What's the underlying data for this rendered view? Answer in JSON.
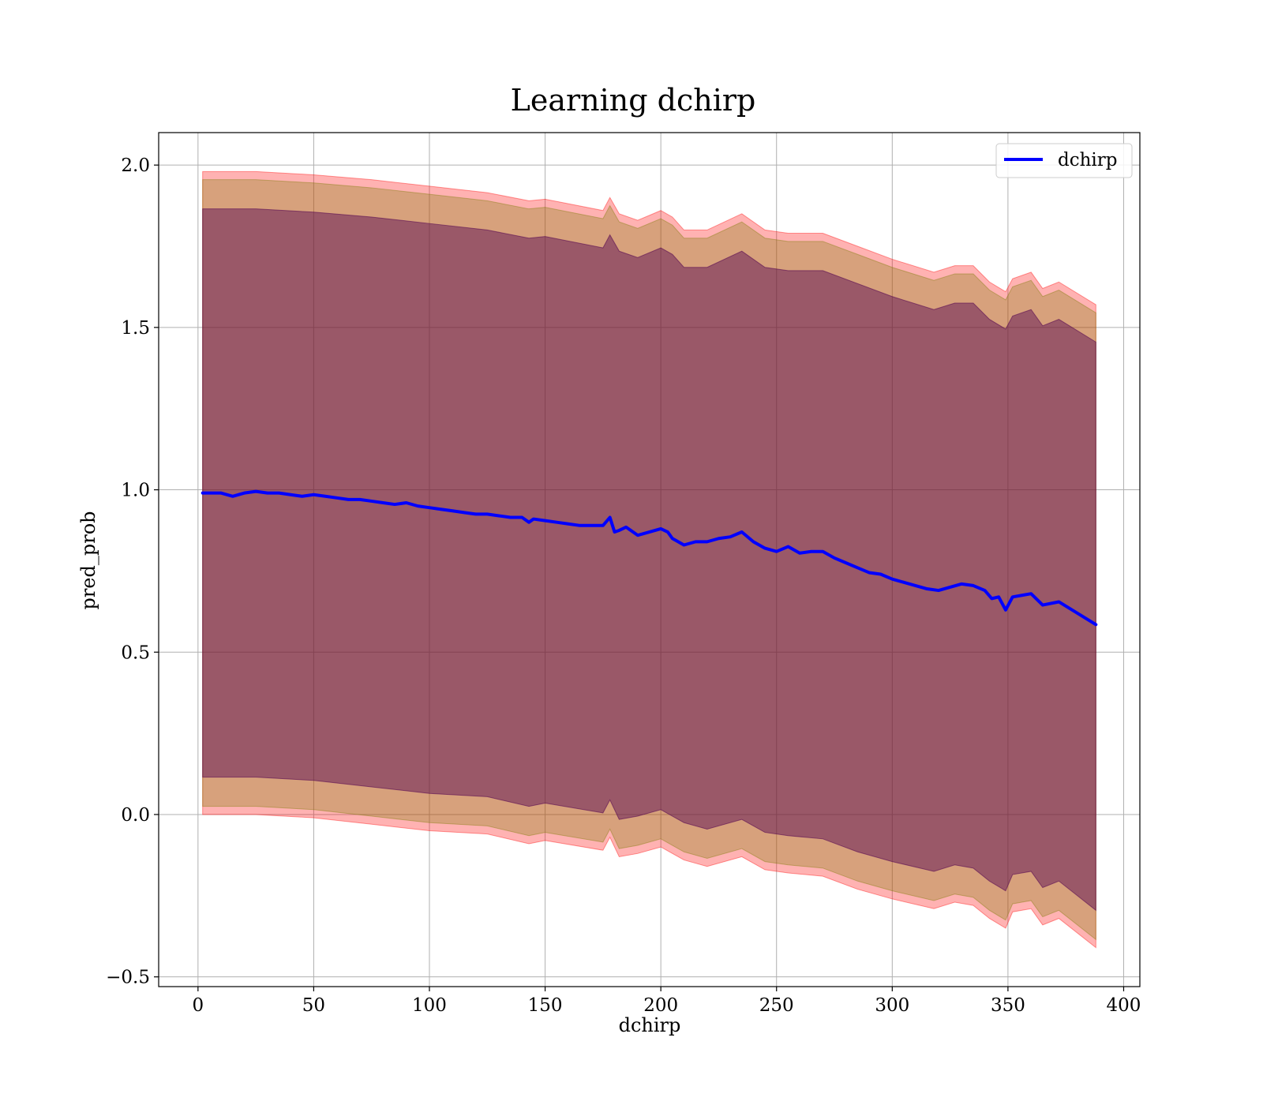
{
  "chart_data": {
    "type": "line",
    "title": "Learning dchirp",
    "xlabel": "dchirp",
    "ylabel": "pred_prob",
    "xlim": [
      -17,
      407
    ],
    "ylim": [
      -0.53,
      2.1
    ],
    "xticks": [
      0,
      50,
      100,
      150,
      200,
      250,
      300,
      350,
      400
    ],
    "xtick_labels": [
      "0",
      "50",
      "100",
      "150",
      "200",
      "250",
      "300",
      "350",
      "400"
    ],
    "yticks": [
      -0.5,
      0.0,
      0.5,
      1.0,
      1.5,
      2.0
    ],
    "ytick_labels": [
      "−0.5",
      "0.0",
      "0.5",
      "1.0",
      "1.5",
      "2.0"
    ],
    "grid": true,
    "legend_position": "top-right",
    "series": [
      {
        "name": "dchirp",
        "color": "#0000ff",
        "x": [
          2,
          10,
          15,
          20,
          25,
          30,
          35,
          40,
          45,
          50,
          55,
          60,
          65,
          70,
          75,
          80,
          85,
          90,
          95,
          100,
          105,
          110,
          115,
          120,
          125,
          130,
          135,
          140,
          143,
          145,
          150,
          155,
          160,
          165,
          170,
          175,
          178,
          180,
          182,
          185,
          190,
          195,
          200,
          203,
          205,
          210,
          215,
          220,
          225,
          230,
          235,
          240,
          245,
          250,
          255,
          260,
          265,
          270,
          275,
          280,
          285,
          290,
          295,
          300,
          305,
          310,
          315,
          320,
          325,
          330,
          335,
          340,
          343,
          346,
          349,
          352,
          356,
          360,
          365,
          372,
          388
        ],
        "values": [
          0.99,
          0.99,
          0.98,
          0.99,
          0.995,
          0.99,
          0.99,
          0.985,
          0.98,
          0.985,
          0.98,
          0.975,
          0.97,
          0.97,
          0.965,
          0.96,
          0.955,
          0.96,
          0.95,
          0.945,
          0.94,
          0.935,
          0.93,
          0.925,
          0.925,
          0.92,
          0.915,
          0.915,
          0.9,
          0.91,
          0.905,
          0.9,
          0.895,
          0.89,
          0.89,
          0.89,
          0.915,
          0.87,
          0.875,
          0.885,
          0.86,
          0.87,
          0.88,
          0.87,
          0.85,
          0.83,
          0.84,
          0.84,
          0.85,
          0.855,
          0.87,
          0.84,
          0.82,
          0.81,
          0.825,
          0.805,
          0.81,
          0.81,
          0.79,
          0.775,
          0.76,
          0.745,
          0.74,
          0.725,
          0.715,
          0.705,
          0.695,
          0.69,
          0.7,
          0.71,
          0.705,
          0.69,
          0.665,
          0.67,
          0.63,
          0.67,
          0.675,
          0.68,
          0.645,
          0.655,
          0.585
        ]
      }
    ],
    "bands": [
      {
        "color": "#ff0000",
        "opacity": 0.3,
        "x": [
          2,
          25,
          50,
          75,
          100,
          125,
          143,
          150,
          175,
          178,
          182,
          190,
          200,
          205,
          210,
          220,
          235,
          245,
          255,
          270,
          285,
          300,
          318,
          327,
          335,
          342,
          349,
          352,
          360,
          365,
          372,
          388
        ],
        "upper": [
          1.98,
          1.98,
          1.97,
          1.955,
          1.935,
          1.915,
          1.89,
          1.895,
          1.86,
          1.9,
          1.85,
          1.83,
          1.86,
          1.84,
          1.8,
          1.8,
          1.85,
          1.8,
          1.79,
          1.79,
          1.75,
          1.71,
          1.67,
          1.69,
          1.69,
          1.64,
          1.61,
          1.65,
          1.67,
          1.62,
          1.64,
          1.57
        ],
        "lower": [
          0.0,
          0.0,
          -0.01,
          -0.03,
          -0.05,
          -0.06,
          -0.09,
          -0.08,
          -0.11,
          -0.07,
          -0.13,
          -0.12,
          -0.1,
          -0.12,
          -0.14,
          -0.16,
          -0.13,
          -0.17,
          -0.18,
          -0.19,
          -0.23,
          -0.26,
          -0.29,
          -0.27,
          -0.28,
          -0.32,
          -0.35,
          -0.3,
          -0.29,
          -0.34,
          -0.32,
          -0.41
        ]
      },
      {
        "color": "#7a7a00",
        "opacity": 0.3,
        "x": [
          2,
          25,
          50,
          75,
          100,
          125,
          143,
          150,
          175,
          178,
          182,
          190,
          200,
          205,
          210,
          220,
          235,
          245,
          255,
          270,
          285,
          300,
          318,
          327,
          335,
          342,
          349,
          352,
          360,
          365,
          372,
          388
        ],
        "upper": [
          1.955,
          1.955,
          1.945,
          1.93,
          1.91,
          1.89,
          1.865,
          1.87,
          1.835,
          1.875,
          1.825,
          1.805,
          1.835,
          1.815,
          1.775,
          1.775,
          1.825,
          1.775,
          1.765,
          1.765,
          1.725,
          1.685,
          1.645,
          1.665,
          1.665,
          1.615,
          1.585,
          1.625,
          1.645,
          1.595,
          1.615,
          1.545
        ],
        "lower": [
          0.025,
          0.025,
          0.015,
          -0.005,
          -0.025,
          -0.035,
          -0.065,
          -0.055,
          -0.085,
          -0.045,
          -0.105,
          -0.095,
          -0.075,
          -0.095,
          -0.115,
          -0.135,
          -0.105,
          -0.145,
          -0.155,
          -0.165,
          -0.205,
          -0.235,
          -0.265,
          -0.245,
          -0.255,
          -0.295,
          -0.325,
          -0.275,
          -0.265,
          -0.315,
          -0.295,
          -0.385
        ]
      },
      {
        "color": "#500050",
        "opacity": 0.45,
        "x": [
          2,
          25,
          50,
          75,
          100,
          125,
          143,
          150,
          175,
          178,
          182,
          190,
          200,
          205,
          210,
          220,
          235,
          245,
          255,
          270,
          285,
          300,
          318,
          327,
          335,
          342,
          349,
          352,
          360,
          365,
          372,
          388
        ],
        "upper": [
          1.865,
          1.865,
          1.855,
          1.84,
          1.82,
          1.8,
          1.775,
          1.78,
          1.745,
          1.785,
          1.735,
          1.715,
          1.745,
          1.725,
          1.685,
          1.685,
          1.735,
          1.685,
          1.675,
          1.675,
          1.635,
          1.595,
          1.555,
          1.575,
          1.575,
          1.525,
          1.495,
          1.535,
          1.555,
          1.505,
          1.525,
          1.455
        ],
        "lower": [
          0.115,
          0.115,
          0.105,
          0.085,
          0.065,
          0.055,
          0.025,
          0.035,
          0.005,
          0.045,
          -0.015,
          -0.005,
          0.015,
          -0.005,
          -0.025,
          -0.045,
          -0.015,
          -0.055,
          -0.065,
          -0.075,
          -0.115,
          -0.145,
          -0.175,
          -0.155,
          -0.165,
          -0.205,
          -0.235,
          -0.185,
          -0.175,
          -0.225,
          -0.205,
          -0.295
        ]
      }
    ]
  }
}
